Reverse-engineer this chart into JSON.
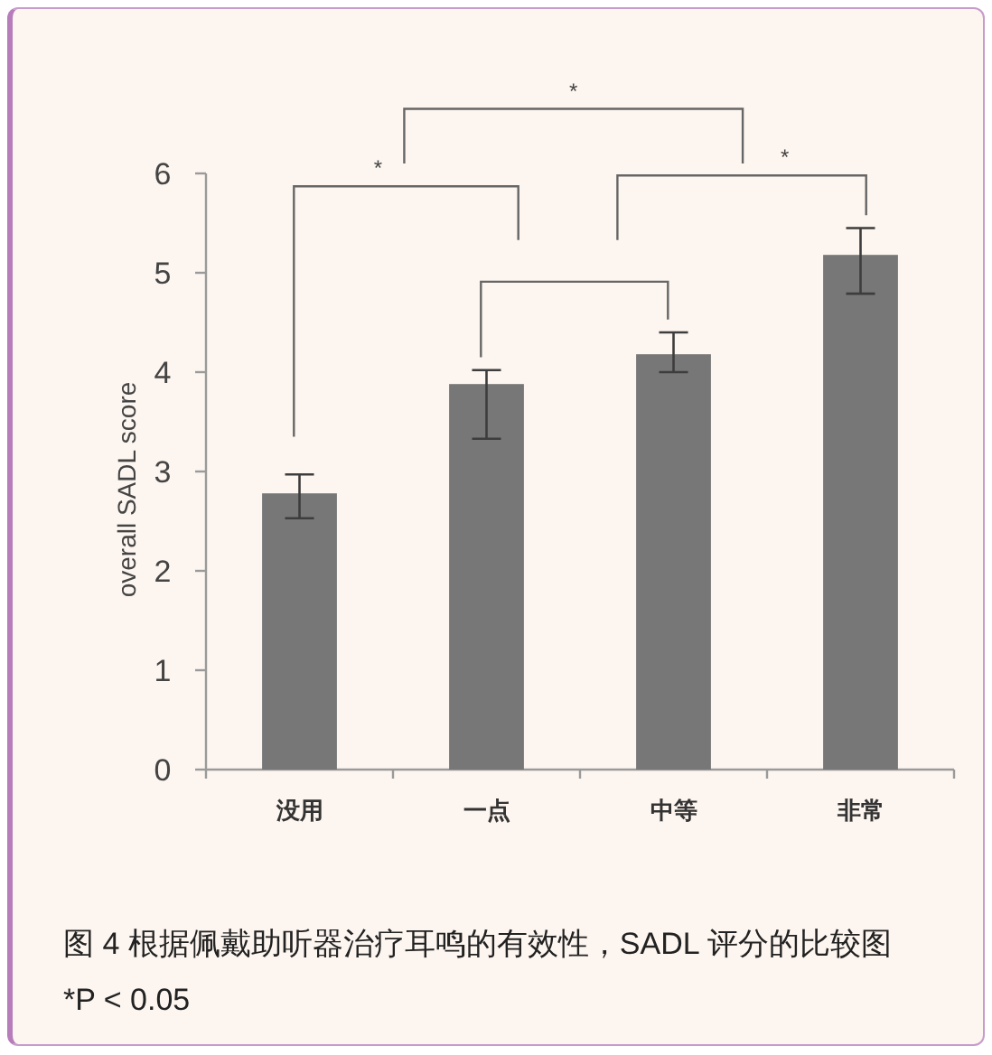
{
  "chart_data": {
    "type": "bar",
    "ylabel": "overall SADL score",
    "categories": [
      "没用",
      "一点",
      "中等",
      "非常"
    ],
    "values": [
      2.78,
      3.88,
      4.18,
      5.18
    ],
    "color": "#777777",
    "errors": [
      [
        2.53,
        2.97
      ],
      [
        3.33,
        4.02
      ],
      [
        4.0,
        4.4
      ],
      [
        4.79,
        5.45
      ]
    ],
    "ylim": [
      0,
      6
    ],
    "yticks": [
      0,
      1,
      2,
      3,
      4,
      5,
      6
    ],
    "annotations": [
      "*",
      "*",
      "*",
      "图 4 根据佩戴助听器治疗耳鸣的有效性，SADL 评分的比较图 *P < 0.05"
    ]
  }
}
